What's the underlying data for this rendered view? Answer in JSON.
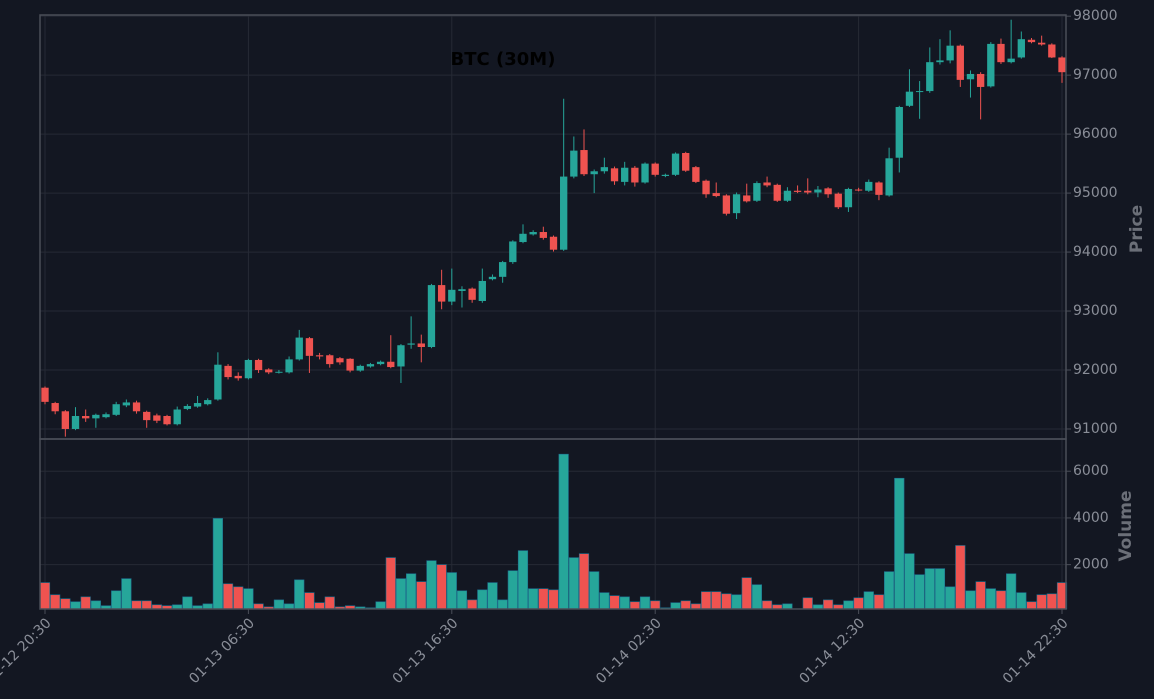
{
  "chart_data": {
    "type": "candlestick",
    "title": "BTC (30M)",
    "ylabel": "Price",
    "categories": [
      "01-12 20:30",
      null,
      null,
      null,
      null,
      null,
      null,
      null,
      null,
      null,
      null,
      null,
      null,
      null,
      null,
      null,
      null,
      null,
      null,
      null,
      "01-13 06:30",
      null,
      null,
      null,
      null,
      null,
      null,
      null,
      null,
      null,
      null,
      null,
      null,
      null,
      null,
      null,
      null,
      null,
      null,
      null,
      "01-13 16:30",
      null,
      null,
      null,
      null,
      null,
      null,
      null,
      null,
      null,
      null,
      null,
      null,
      null,
      null,
      null,
      null,
      null,
      null,
      null,
      "01-14 02:30",
      null,
      null,
      null,
      null,
      null,
      null,
      null,
      null,
      null,
      null,
      null,
      null,
      null,
      null,
      null,
      null,
      null,
      null,
      null,
      "01-14 12:30",
      null,
      null,
      null,
      null,
      null,
      null,
      null,
      null,
      null,
      null,
      null,
      null,
      null,
      null,
      null,
      null,
      null,
      null,
      null,
      "01-14 22:30"
    ],
    "open": [
      91700,
      91440,
      91300,
      91000,
      91220,
      91180,
      91200,
      91240,
      91400,
      91450,
      91290,
      91230,
      91220,
      91080,
      91340,
      91380,
      91420,
      91500,
      92070,
      91900,
      91860,
      92170,
      92010,
      91960,
      91960,
      92180,
      92540,
      92250,
      92250,
      92200,
      92190,
      91990,
      92060,
      92100,
      92140,
      92060,
      92430,
      92450,
      92390,
      93440,
      93160,
      93340,
      93380,
      93170,
      93540,
      93580,
      93830,
      94170,
      94300,
      94340,
      94260,
      94040,
      95280,
      95730,
      95320,
      95370,
      95420,
      95190,
      95430,
      95180,
      95500,
      95290,
      95310,
      95680,
      95440,
      95210,
      95000,
      94960,
      94660,
      94960,
      94870,
      95180,
      95140,
      94870,
      95040,
      95040,
      95010,
      95080,
      94990,
      94760,
      95060,
      95040,
      95180,
      94960,
      95600,
      96480,
      96720,
      96730,
      97220,
      97250,
      97500,
      96930,
      97020,
      96810,
      97530,
      97220,
      97300,
      97600,
      97550,
      97520,
      97300
    ],
    "high": [
      91720,
      91460,
      91320,
      91370,
      91330,
      91260,
      91280,
      91460,
      91500,
      91480,
      91310,
      91260,
      91240,
      91380,
      91420,
      91560,
      91520,
      92300,
      92100,
      91960,
      92190,
      92190,
      92030,
      92000,
      92230,
      92680,
      92560,
      92290,
      92270,
      92220,
      92200,
      92090,
      92120,
      92160,
      92590,
      92440,
      92910,
      92600,
      93460,
      93700,
      93720,
      93420,
      93400,
      93720,
      93620,
      93850,
      94200,
      94470,
      94370,
      94430,
      94280,
      96600,
      95960,
      96080,
      95400,
      95600,
      95450,
      95530,
      95460,
      95520,
      95520,
      95330,
      95690,
      95700,
      95460,
      95230,
      95180,
      94980,
      95010,
      95160,
      95200,
      95280,
      95160,
      95100,
      95130,
      95250,
      95120,
      95100,
      95010,
      95090,
      95090,
      95230,
      95200,
      95770,
      96480,
      97100,
      96900,
      97470,
      97610,
      97760,
      97520,
      97080,
      97050,
      97560,
      97620,
      97940,
      97740,
      97630,
      97670,
      97540,
      97320
    ],
    "low": [
      91420,
      91250,
      90870,
      90980,
      91120,
      91020,
      91180,
      91220,
      91370,
      91260,
      91020,
      91100,
      91060,
      91060,
      91320,
      91360,
      91400,
      91480,
      91840,
      91820,
      91840,
      91950,
      91930,
      91940,
      91940,
      92160,
      91950,
      92180,
      92040,
      92090,
      91960,
      91970,
      92040,
      92080,
      92030,
      91780,
      92360,
      92130,
      92370,
      93030,
      93100,
      93060,
      93140,
      93140,
      93520,
      93480,
      93800,
      94150,
      94280,
      94210,
      94010,
      94020,
      95250,
      95290,
      95000,
      95330,
      95140,
      95130,
      95110,
      95160,
      95280,
      95270,
      95290,
      95360,
      95170,
      94920,
      94930,
      94620,
      94560,
      94840,
      94850,
      95100,
      94850,
      94850,
      95000,
      94980,
      94930,
      94920,
      94730,
      94680,
      95030,
      95020,
      94880,
      94940,
      95350,
      96460,
      96260,
      96700,
      97180,
      97200,
      96800,
      96620,
      96250,
      96790,
      97190,
      97200,
      97280,
      97540,
      97500,
      97290,
      96870
    ],
    "close": [
      91460,
      91300,
      91000,
      91220,
      91180,
      91240,
      91250,
      91420,
      91450,
      91300,
      91150,
      91140,
      91080,
      91330,
      91390,
      91440,
      91490,
      92090,
      91880,
      91860,
      92170,
      92000,
      91960,
      91970,
      92180,
      92550,
      92240,
      92230,
      92100,
      92130,
      91990,
      92070,
      92100,
      92140,
      92050,
      92420,
      92450,
      92390,
      93440,
      93160,
      93360,
      93370,
      93190,
      93510,
      93580,
      93830,
      94180,
      94310,
      94340,
      94240,
      94040,
      95280,
      95720,
      95320,
      95370,
      95440,
      95200,
      95430,
      95180,
      95500,
      95310,
      95310,
      95670,
      95380,
      95190,
      94980,
      94950,
      94650,
      94980,
      94860,
      95170,
      95130,
      94870,
      95040,
      95020,
      95010,
      95060,
      94980,
      94760,
      95070,
      95050,
      95190,
      94970,
      95590,
      96460,
      96720,
      96730,
      97220,
      97250,
      97500,
      96920,
      97020,
      96800,
      97530,
      97220,
      97280,
      97610,
      97560,
      97520,
      97300,
      97050
    ],
    "ylim": [
      90830,
      98020
    ],
    "yticks": [
      91000,
      92000,
      93000,
      94000,
      95000,
      96000,
      97000,
      98000
    ],
    "grid": true,
    "up_color": "#26a69a",
    "down_color": "#ef5350",
    "volume": {
      "ylabel": "Volume",
      "values": [
        1230,
        710,
        540,
        410,
        620,
        450,
        240,
        880,
        1400,
        450,
        450,
        280,
        240,
        280,
        620,
        240,
        320,
        3980,
        1180,
        1050,
        970,
        320,
        190,
        490,
        320,
        1350,
        800,
        370,
        620,
        190,
        240,
        190,
        150,
        410,
        2300,
        1400,
        1610,
        1270,
        2170,
        2000,
        1660,
        880,
        490,
        920,
        1230,
        490,
        1740,
        2600,
        970,
        970,
        920,
        6730,
        2300,
        2470,
        1700,
        800,
        670,
        620,
        410,
        620,
        450,
        150,
        370,
        450,
        320,
        840,
        840,
        750,
        710,
        1440,
        1140,
        450,
        280,
        320,
        110,
        580,
        280,
        490,
        280,
        450,
        580,
        840,
        710,
        1700,
        5700,
        2470,
        1570,
        1830,
        1830,
        1050,
        2820,
        880,
        1270,
        970,
        880,
        1610,
        800,
        410,
        710,
        750,
        1230
      ],
      "ylim": [
        100,
        7380
      ],
      "yticks": [
        2000,
        4000,
        6000
      ]
    }
  }
}
